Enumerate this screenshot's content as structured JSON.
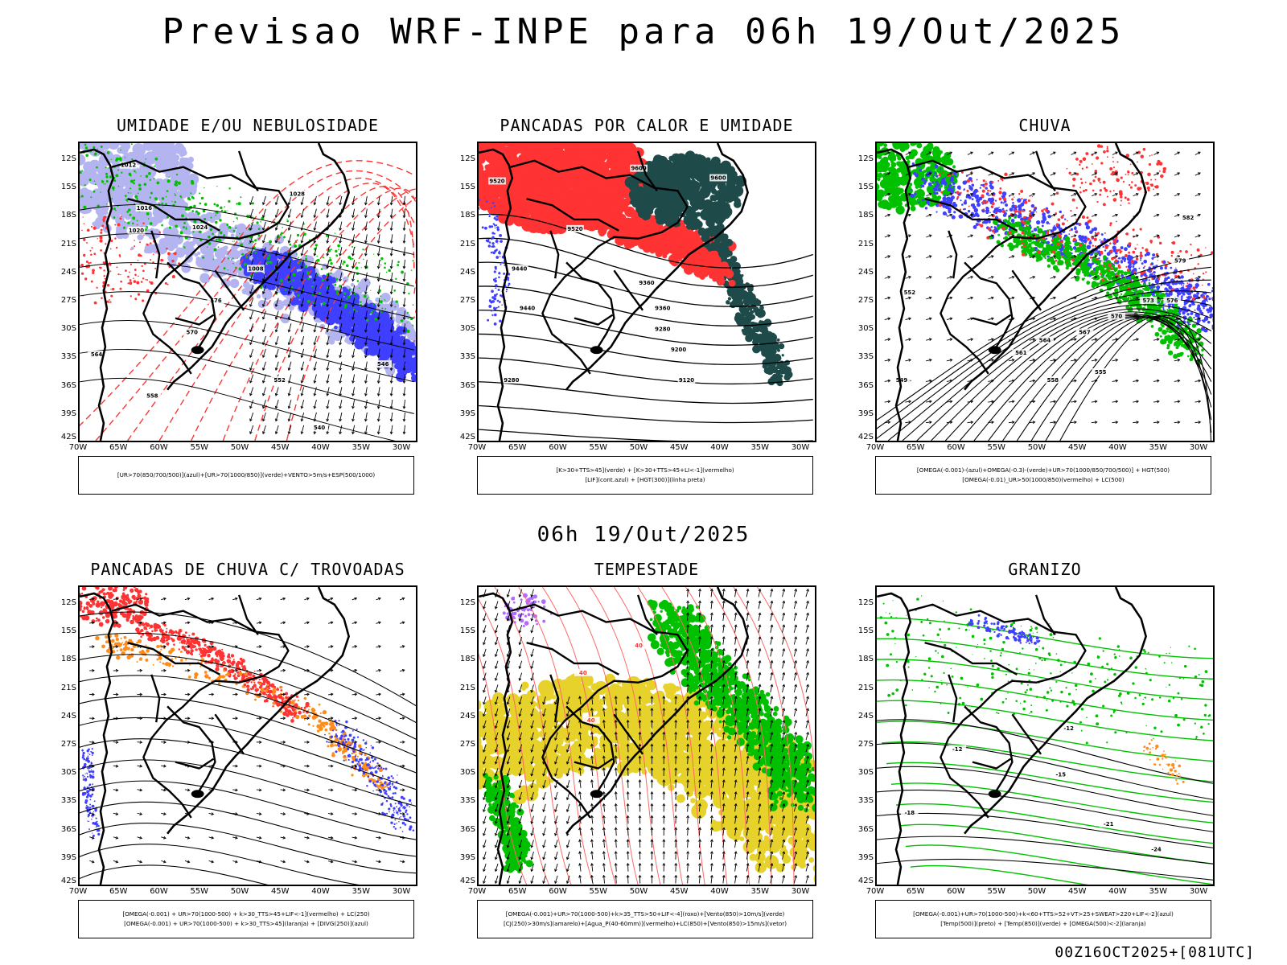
{
  "title": "Previsao WRF-INPE  para 06h 19/Out/2025",
  "mid_title": "06h 19/Out/2025",
  "footer": "00Z16OCT2025+[081UTC]",
  "latitude_labels": [
    "12S",
    "15S",
    "18S",
    "21S",
    "24S",
    "27S",
    "30S",
    "33S",
    "36S",
    "39S",
    "42S"
  ],
  "longitude_labels": [
    "70W",
    "65W",
    "60W",
    "55W",
    "50W",
    "45W",
    "40W",
    "35W",
    "30W"
  ],
  "panels": [
    {
      "id": "umidade",
      "title": "UMIDADE E/OU NEBULOSIDADE",
      "legend": [
        "[UR>70(850/700/500)](azul)+[UR>70(1000/850)](verde)+VENTO>5m/s+ESP(500/1000)"
      ],
      "contour_labels": [
        "1012",
        "1016",
        "1020",
        "1024",
        "1028",
        "1008",
        "576",
        "570",
        "564",
        "558",
        "552",
        "546",
        "540"
      ]
    },
    {
      "id": "pancadas-calor",
      "title": "PANCADAS POR CALOR E UMIDADE",
      "legend": [
        "[K>30+TTS>45](verde)  +  [K>30+TTS>45+LI<-1](vermelho)",
        "[LIF](cont.azul)  +  [HGT(300)](linha preta)"
      ],
      "contour_labels": [
        "9600",
        "9600",
        "9520",
        "9520",
        "9440",
        "9440",
        "9360",
        "9360",
        "9280",
        "9280",
        "9200",
        "9120"
      ]
    },
    {
      "id": "chuva",
      "title": "CHUVA",
      "legend": [
        "[OMEGA(-0.001)-(azul)+OMEGA(-0.3)-(verde)+UR>70(1000/850/700/500)]  +  HGT(500)",
        "[OMEGA(-0.01)_UR>50(1000/850)(vermelho)  +  LC(500)"
      ],
      "contour_labels": [
        "582",
        "579",
        "576",
        "573",
        "570",
        "567",
        "564",
        "561",
        "558",
        "555",
        "552",
        "549"
      ]
    },
    {
      "id": "pancadas-trovoadas",
      "title": "PANCADAS DE CHUVA C/ TROVOADAS",
      "legend": [
        "[OMEGA(-0.001)  +  UR>70(1000-500)  +  k>30_TTS>45+LIF<-1](vermelho)  +  LC(250)",
        "[OMEGA(-0.001)  +  UR>70(1000-500)  +  k>30_TTS>45](laranja)  +  [DIVG(250)](azul)"
      ],
      "contour_labels": []
    },
    {
      "id": "tempestade",
      "title": "TEMPESTADE",
      "legend": [
        "[OMEGA(-0.001)+UR>70(1000-500)+k>35_TTS>50+LIF<-4](roxo)+[Vento(850)>10m/s](verde)",
        "[CJ(250)>30m/s](amarelo)+[Agua_P(40-60mm)](vermelho)+LC(850)+[Vento(850)>15m/s](vetor)"
      ],
      "contour_labels": [
        "40",
        "40",
        "40"
      ]
    },
    {
      "id": "granizo",
      "title": "GRANIZO",
      "legend": [
        "[OMEGA(-0.001)+UR>70(1000-500)+k<60+TTS>52+VT>25+SWEAT>220+LIF<-2](azul)",
        "[Temp(500)](preto)  +  [Temp(850)](verde)  +  [OMEGA(500)<-2](laranja)"
      ],
      "contour_labels": [
        "-12",
        "-12",
        "-15",
        "-18",
        "-21",
        "-24"
      ]
    }
  ],
  "colors": {
    "blue": "#3f3fff",
    "light_blue": "#b4b4f0",
    "green": "#00c000",
    "red": "#ff3333",
    "dark_teal": "#1e4a4a",
    "orange": "#ff8c1a",
    "yellow": "#e6d22a"
  }
}
